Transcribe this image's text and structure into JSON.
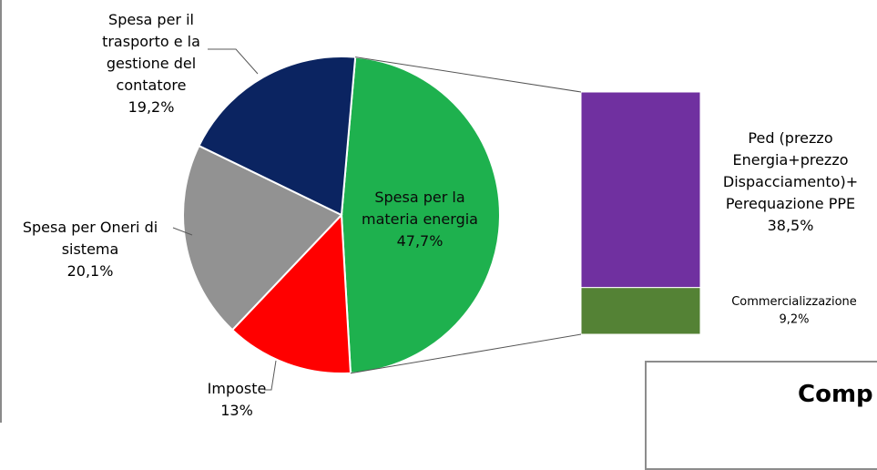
{
  "chart_data": {
    "type": "pie",
    "title": "",
    "slices": [
      {
        "label_lines": [
          "Spesa per la",
          "materia energia",
          "47,7%"
        ],
        "value": 47.7,
        "color": "#1eb14e"
      },
      {
        "label_lines": [
          "Imposte",
          "13%"
        ],
        "value": 13.0,
        "color": "#ff0000"
      },
      {
        "label_lines": [
          "Spesa per Oneri di",
          "sistema",
          "20,1%"
        ],
        "value": 20.1,
        "color": "#929292"
      },
      {
        "label_lines": [
          "Spesa per il",
          "trasporto e la",
          "gestione del",
          "contatore",
          "19,2%"
        ],
        "value": 19.2,
        "color": "#0b2461"
      }
    ],
    "breakdown_of": "Spesa per la materia energia",
    "breakdown": [
      {
        "label_lines": [
          "Ped (prezzo",
          "Energia+prezzo",
          "Dispacciamento)+",
          "Perequazione PPE",
          "38,5%"
        ],
        "value": 38.5,
        "color": "#7030a0"
      },
      {
        "label_lines": [
          "Commercializzazione",
          "9,2%"
        ],
        "value": 9.2,
        "color": "#548235"
      }
    ]
  },
  "inset": {
    "title": "Comp"
  }
}
